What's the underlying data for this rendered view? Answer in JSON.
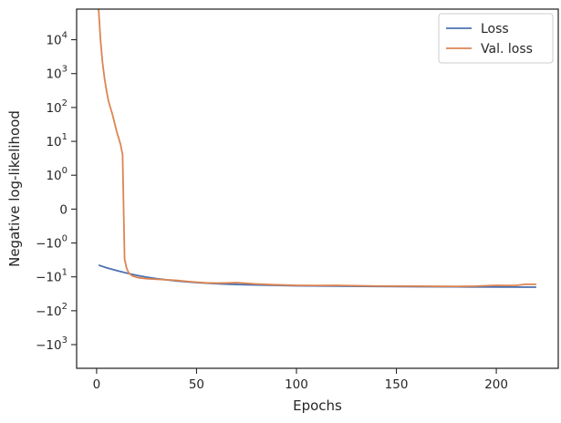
{
  "chart_data": {
    "type": "line",
    "title": "",
    "xlabel": "Epochs",
    "ylabel": "Negative log-likelihood",
    "xlim": [
      -10,
      231
    ],
    "xticks": [
      0,
      50,
      100,
      150,
      200
    ],
    "x_tick_labels": [
      "0",
      "50",
      "100",
      "150",
      "200"
    ],
    "yscale": "symlog",
    "linthresh": 1,
    "ylim": [
      -5000,
      80000
    ],
    "yticks": [
      {
        "value": 10000,
        "base": "10",
        "exp": "4"
      },
      {
        "value": 1000,
        "base": "10",
        "exp": "3"
      },
      {
        "value": 100,
        "base": "10",
        "exp": "2"
      },
      {
        "value": 10,
        "base": "10",
        "exp": "1"
      },
      {
        "value": 1,
        "base": "10",
        "exp": "0"
      },
      {
        "value": 0,
        "base": "0",
        "exp": ""
      },
      {
        "value": -1,
        "base": "−10",
        "exp": "0"
      },
      {
        "value": -10,
        "base": "−10",
        "exp": "1"
      },
      {
        "value": -100,
        "base": "−10",
        "exp": "2"
      },
      {
        "value": -1000,
        "base": "−10",
        "exp": "3"
      }
    ],
    "grid": false,
    "legend_position": "top-right",
    "series": [
      {
        "name": "Loss",
        "color": "#4c72b0",
        "x": [
          1,
          5,
          10,
          15,
          20,
          25,
          30,
          40,
          50,
          60,
          70,
          80,
          100,
          120,
          140,
          160,
          180,
          200,
          220
        ],
        "y": [
          -4.5,
          -5.4,
          -6.5,
          -7.7,
          -9,
          -10.2,
          -11.3,
          -13.2,
          -14.8,
          -16,
          -16.8,
          -17.4,
          -18.3,
          -18.8,
          -19.2,
          -19.5,
          -19.7,
          -19.9,
          -20.1
        ]
      },
      {
        "name": "Val. loss",
        "color": "#dd8452",
        "x": [
          1,
          2,
          3,
          4,
          5,
          6,
          8,
          10,
          12,
          13,
          14,
          15,
          16,
          17,
          18,
          20,
          22,
          25,
          30,
          35,
          40,
          45,
          50,
          55,
          60,
          65,
          70,
          75,
          80,
          90,
          100,
          110,
          120,
          130,
          140,
          150,
          160,
          170,
          180,
          190,
          195,
          200,
          205,
          210,
          215,
          220
        ],
        "y": [
          80000,
          9000,
          2000,
          700,
          300,
          150,
          60,
          20,
          8,
          4,
          -3,
          -5.5,
          -7.5,
          -8.6,
          -9.4,
          -10.3,
          -10.8,
          -11.3,
          -11.8,
          -12.2,
          -12.7,
          -13.6,
          -14.4,
          -15,
          -15.3,
          -15.1,
          -14.8,
          -15.5,
          -16.2,
          -17.2,
          -17.8,
          -17.9,
          -17.8,
          -18.3,
          -18.6,
          -18.7,
          -18.8,
          -19,
          -19.1,
          -18.8,
          -18.2,
          -17.8,
          -17.9,
          -17.8,
          -16.5,
          -16.6
        ]
      }
    ]
  }
}
